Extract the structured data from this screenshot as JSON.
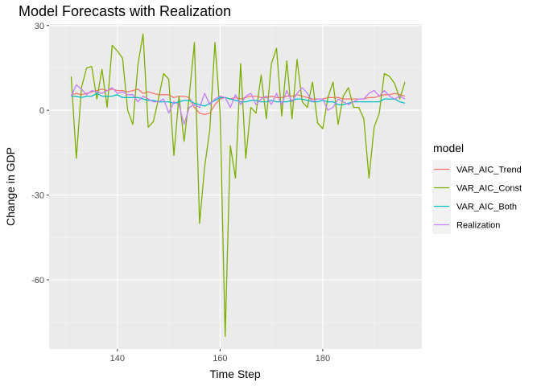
{
  "chart_data": {
    "type": "line",
    "title": "Model Forecasts with Realization",
    "xlabel": "Time Step",
    "ylabel": "Change in GDP",
    "xlim": [
      126.7,
      199.3
    ],
    "ylim": [
      -84.5,
      30.5
    ],
    "xticks": [
      140,
      160,
      180
    ],
    "yticks": [
      30,
      0,
      -30,
      -60
    ],
    "grid": true,
    "legend": {
      "title": "model",
      "placement": "right"
    },
    "series": [
      {
        "name": "VAR_AIC_Trend",
        "color": "#F8766D",
        "points": [
          [
            131,
            5.5
          ],
          [
            132,
            6
          ],
          [
            133,
            5.5
          ],
          [
            134,
            6
          ],
          [
            135,
            6.5
          ],
          [
            136,
            7
          ],
          [
            137,
            7.5
          ],
          [
            138,
            7
          ],
          [
            139,
            7.5
          ],
          [
            140,
            7
          ],
          [
            141,
            7
          ],
          [
            142,
            6.5
          ],
          [
            143,
            7
          ],
          [
            144,
            7.5
          ],
          [
            145,
            6
          ],
          [
            146,
            6.5
          ],
          [
            147,
            6
          ],
          [
            148,
            5.5
          ],
          [
            149,
            5.5
          ],
          [
            150,
            5.5
          ],
          [
            151,
            4.5
          ],
          [
            152,
            5
          ],
          [
            153,
            5
          ],
          [
            154,
            4.5
          ],
          [
            155,
            1
          ],
          [
            156,
            -1
          ],
          [
            157,
            -1.5
          ],
          [
            158,
            -1
          ],
          [
            159,
            2
          ],
          [
            160,
            4
          ],
          [
            161,
            4.5
          ],
          [
            162,
            4
          ],
          [
            163,
            4.5
          ],
          [
            164,
            4
          ],
          [
            165,
            4.5
          ],
          [
            166,
            5
          ],
          [
            167,
            5
          ],
          [
            168,
            4.5
          ],
          [
            169,
            4.5
          ],
          [
            170,
            5
          ],
          [
            171,
            4.5
          ],
          [
            172,
            4.5
          ],
          [
            173,
            5
          ],
          [
            174,
            5
          ],
          [
            175,
            5.5
          ],
          [
            176,
            5
          ],
          [
            177,
            4.5
          ],
          [
            178,
            4
          ],
          [
            179,
            4
          ],
          [
            180,
            4
          ],
          [
            181,
            4.5
          ],
          [
            182,
            4.5
          ],
          [
            183,
            4.5
          ],
          [
            184,
            4
          ],
          [
            185,
            4
          ],
          [
            186,
            4
          ],
          [
            187,
            4
          ],
          [
            188,
            4
          ],
          [
            189,
            4.5
          ],
          [
            190,
            4.5
          ],
          [
            191,
            5
          ],
          [
            192,
            5.5
          ],
          [
            193,
            5.5
          ],
          [
            194,
            6
          ],
          [
            195,
            5.5
          ],
          [
            196,
            5
          ]
        ]
      },
      {
        "name": "VAR_AIC_Const",
        "color": "#7CAE00",
        "points": [
          [
            131,
            12
          ],
          [
            132,
            -17
          ],
          [
            133,
            8
          ],
          [
            134,
            15
          ],
          [
            135,
            15.5
          ],
          [
            136,
            4
          ],
          [
            137,
            14.5
          ],
          [
            138,
            1
          ],
          [
            139,
            23
          ],
          [
            140,
            21
          ],
          [
            141,
            18.5
          ],
          [
            142,
            0
          ],
          [
            143,
            -5
          ],
          [
            144,
            16
          ],
          [
            145,
            27
          ],
          [
            146,
            -6
          ],
          [
            147,
            -4
          ],
          [
            148,
            4
          ],
          [
            149,
            13
          ],
          [
            150,
            11
          ],
          [
            151,
            -16
          ],
          [
            152,
            5
          ],
          [
            153,
            -11
          ],
          [
            154,
            5
          ],
          [
            155,
            24
          ],
          [
            156,
            -40
          ],
          [
            157,
            -20
          ],
          [
            158,
            -7
          ],
          [
            159,
            24
          ],
          [
            160,
            -1
          ],
          [
            161,
            -80
          ],
          [
            162,
            -12.5
          ],
          [
            163,
            -24
          ],
          [
            164,
            16.5
          ],
          [
            165,
            -17
          ],
          [
            166,
            1
          ],
          [
            167,
            -1
          ],
          [
            168,
            12.5
          ],
          [
            169,
            -3
          ],
          [
            170,
            16.5
          ],
          [
            171,
            22
          ],
          [
            172,
            -2
          ],
          [
            173,
            17.5
          ],
          [
            174,
            -3
          ],
          [
            175,
            18
          ],
          [
            176,
            3
          ],
          [
            177,
            1
          ],
          [
            178,
            10
          ],
          [
            179,
            -4.5
          ],
          [
            180,
            -6.5
          ],
          [
            181,
            4.5
          ],
          [
            182,
            10
          ],
          [
            183,
            -5
          ],
          [
            184,
            5
          ],
          [
            185,
            8
          ],
          [
            186,
            1
          ],
          [
            187,
            1
          ],
          [
            188,
            -3
          ],
          [
            189,
            -24
          ],
          [
            190,
            -6
          ],
          [
            191,
            -1
          ],
          [
            192,
            13
          ],
          [
            193,
            12
          ],
          [
            194,
            9.5
          ],
          [
            195,
            4
          ],
          [
            196,
            10
          ]
        ]
      },
      {
        "name": "VAR_AIC_Both",
        "color": "#00BFC4",
        "points": [
          [
            131,
            5
          ],
          [
            132,
            5
          ],
          [
            133,
            4.5
          ],
          [
            134,
            5
          ],
          [
            135,
            5
          ],
          [
            136,
            6
          ],
          [
            137,
            5
          ],
          [
            138,
            5
          ],
          [
            139,
            5
          ],
          [
            140,
            5.5
          ],
          [
            141,
            4.5
          ],
          [
            142,
            4.5
          ],
          [
            143,
            4.5
          ],
          [
            144,
            4.5
          ],
          [
            145,
            4
          ],
          [
            146,
            3.5
          ],
          [
            147,
            3.5
          ],
          [
            148,
            3
          ],
          [
            149,
            3
          ],
          [
            150,
            3
          ],
          [
            151,
            2.5
          ],
          [
            152,
            3
          ],
          [
            153,
            3.5
          ],
          [
            154,
            3.5
          ],
          [
            155,
            2.5
          ],
          [
            156,
            2
          ],
          [
            157,
            1.5
          ],
          [
            158,
            2.5
          ],
          [
            159,
            3.5
          ],
          [
            160,
            4.5
          ],
          [
            161,
            4.5
          ],
          [
            162,
            4
          ],
          [
            163,
            3.5
          ],
          [
            164,
            3
          ],
          [
            165,
            3
          ],
          [
            166,
            3.5
          ],
          [
            167,
            3.5
          ],
          [
            168,
            3
          ],
          [
            169,
            3
          ],
          [
            170,
            3.5
          ],
          [
            171,
            3
          ],
          [
            172,
            3
          ],
          [
            173,
            3
          ],
          [
            174,
            3.5
          ],
          [
            175,
            4
          ],
          [
            176,
            4
          ],
          [
            177,
            3.5
          ],
          [
            178,
            3
          ],
          [
            179,
            3
          ],
          [
            180,
            3.5
          ],
          [
            181,
            3
          ],
          [
            182,
            3
          ],
          [
            183,
            2
          ],
          [
            184,
            2
          ],
          [
            185,
            2.5
          ],
          [
            186,
            3
          ],
          [
            187,
            3
          ],
          [
            188,
            3
          ],
          [
            189,
            3
          ],
          [
            190,
            3
          ],
          [
            191,
            3
          ],
          [
            192,
            4
          ],
          [
            193,
            4
          ],
          [
            194,
            4
          ],
          [
            195,
            3
          ],
          [
            196,
            2.5
          ]
        ]
      },
      {
        "name": "Realization",
        "color": "#C77CFF",
        "points": [
          [
            131,
            5
          ],
          [
            132,
            9
          ],
          [
            133,
            7.5
          ],
          [
            134,
            5.5
          ],
          [
            135,
            7
          ],
          [
            136,
            6.5
          ],
          [
            137,
            6
          ],
          [
            138,
            7
          ],
          [
            139,
            8
          ],
          [
            140,
            6
          ],
          [
            141,
            6.5
          ],
          [
            142,
            5.5
          ],
          [
            143,
            5.5
          ],
          [
            144,
            3
          ],
          [
            145,
            5
          ],
          [
            146,
            4
          ],
          [
            147,
            3
          ],
          [
            148,
            3
          ],
          [
            149,
            4
          ],
          [
            150,
            -1
          ],
          [
            151,
            3
          ],
          [
            152,
            2
          ],
          [
            153,
            -5
          ],
          [
            154,
            1
          ],
          [
            155,
            2
          ],
          [
            156,
            1
          ],
          [
            157,
            6
          ],
          [
            158,
            2
          ],
          [
            159,
            4
          ],
          [
            160,
            5
          ],
          [
            161,
            4.5
          ],
          [
            162,
            1
          ],
          [
            163,
            5.5
          ],
          [
            164,
            2
          ],
          [
            165,
            5
          ],
          [
            166,
            6
          ],
          [
            167,
            2
          ],
          [
            168,
            4
          ],
          [
            169,
            5
          ],
          [
            170,
            2
          ],
          [
            171,
            6
          ],
          [
            172,
            2
          ],
          [
            173,
            7
          ],
          [
            174,
            3
          ],
          [
            175,
            6
          ],
          [
            176,
            8
          ],
          [
            177,
            6
          ],
          [
            178,
            3
          ],
          [
            179,
            4
          ],
          [
            180,
            4
          ],
          [
            181,
            0
          ],
          [
            182,
            1
          ],
          [
            183,
            4
          ],
          [
            184,
            3
          ],
          [
            185,
            2
          ],
          [
            186,
            3
          ],
          [
            187,
            4
          ],
          [
            188,
            4
          ],
          [
            189,
            6
          ],
          [
            190,
            7
          ],
          [
            191,
            5
          ],
          [
            192,
            7
          ],
          [
            193,
            5
          ],
          [
            194,
            4
          ],
          [
            195,
            5
          ],
          [
            196,
            4
          ]
        ]
      }
    ]
  }
}
